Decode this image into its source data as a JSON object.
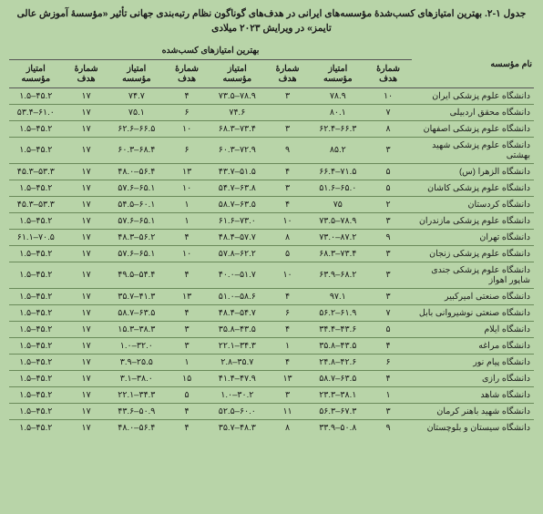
{
  "title": "جدول ۱-۲. بهترین امتیازهای کسب‌شدهٔ مؤسسه‌های ایرانی در هدف‌های گوناگون نظام رتبه‌بندی جهانی تأثیر «مؤسسهٔ آموزش عالی تایمز» در ویرایش ۲۰۲۳ میلادی",
  "headers": {
    "name": "نام مؤسسه",
    "best_scores": "بهترین امتیازهای کسب‌شده",
    "goal_no": "شمارهٔ هدف",
    "inst_score": "امتیاز مؤسسه"
  },
  "rows": [
    {
      "name": "دانشگاه علوم پزشکی ایران",
      "c": [
        "۱۰",
        "۷۸.۹",
        "۳",
        "۷۳.۵–۷۸.۹",
        "۴",
        "۷۴.۷",
        "۱۷",
        "۱.۵–۴۵.۲"
      ]
    },
    {
      "name": "دانشگاه محقق اردبیلی",
      "c": [
        "۷",
        "۸۰.۱",
        "",
        "۷۴.۶",
        "۶",
        "۷۵.۱",
        "۱۷",
        "۵۳.۴–۶۱.۰"
      ]
    },
    {
      "name": "دانشگاه علوم پزشکی اصفهان",
      "c": [
        "۸",
        "۶۲.۴–۶۶.۳",
        "۳",
        "۶۸.۳–۷۳.۴",
        "۱۰",
        "۶۲.۶–۶۶.۵",
        "۱۷",
        "۱.۵–۴۵.۲"
      ]
    },
    {
      "name": "دانشگاه علوم پزشکی شهید بهشتی",
      "c": [
        "۳",
        "۸۵.۲",
        "۹",
        "۶۰.۳–۷۲.۹",
        "۶",
        "۶۰.۳–۶۸.۴",
        "۱۷",
        "۱.۵–۴۵.۲"
      ]
    },
    {
      "name": "دانشگاه الزهرا (س)",
      "c": [
        "۵",
        "۶۶.۴–۷۱.۵",
        "۴",
        "۴۳.۷–۵۱.۵",
        "۱۳",
        "۴۸.۰–۵۶.۴",
        "۱۷",
        "۴۵.۳–۵۳.۳"
      ]
    },
    {
      "name": "دانشگاه علوم پزشکی کاشان",
      "c": [
        "۵",
        "۵۱.۶–۶۵.۰",
        "۳",
        "۵۴.۷–۶۳.۸",
        "۱۰",
        "۵۷.۶–۶۵.۱",
        "۱۷",
        "۱.۵–۴۵.۲"
      ]
    },
    {
      "name": "دانشگاه کردستان",
      "c": [
        "۲",
        "۷۵",
        "۴",
        "۵۸.۷–۶۳.۵",
        "۱",
        "۵۴.۵–۶۰.۱",
        "۱۷",
        "۴۵.۳–۵۳.۳"
      ]
    },
    {
      "name": "دانشگاه علوم پزشکی مازندران",
      "c": [
        "۳",
        "۷۳.۵–۷۸.۹",
        "۱۰",
        "۶۱.۶–۷۳.۰",
        "۱",
        "۵۷.۶–۶۵.۱",
        "۱۷",
        "۱.۵–۴۵.۲"
      ]
    },
    {
      "name": "دانشگاه تهران",
      "c": [
        "۹",
        "۷۳.۰–۸۷.۲",
        "۸",
        "۴۸.۴–۵۷.۷",
        "۴",
        "۴۸.۳–۵۶.۲",
        "۱۷",
        "۶۱.۱–۷۰.۵"
      ]
    },
    {
      "name": "دانشگاه علوم پزشکی زنجان",
      "c": [
        "۳",
        "۶۸.۳–۷۳.۴",
        "۵",
        "۵۷.۸–۶۲.۲",
        "۱۰",
        "۵۷.۶–۶۵.۱",
        "۱۷",
        "۱.۵–۴۵.۲"
      ]
    },
    {
      "name": "دانشگاه علوم پزشکی جندی شاپور اهواز",
      "c": [
        "۳",
        "۶۳.۹–۶۸.۲",
        "۱۰",
        "۴۰.۰–۵۱.۷",
        "۴",
        "۴۹.۵–۵۴.۴",
        "۱۷",
        "۱.۵–۴۵.۲"
      ]
    },
    {
      "name": "دانشگاه صنعتی امیرکبیر",
      "c": [
        "۳",
        "۹۷.۱",
        "۴",
        "۵۱.۰–۵۸.۶",
        "۱۳",
        "۳۵.۷–۴۱.۳",
        "۱۷",
        "۱.۵–۴۵.۲"
      ]
    },
    {
      "name": "دانشگاه صنعتی نوشیروانی بابل",
      "c": [
        "۷",
        "۵۶.۲–۶۱.۹",
        "۶",
        "۴۸.۴–۵۴.۷",
        "۴",
        "۵۸.۷–۶۳.۵",
        "۱۷",
        "۱.۵–۴۵.۲"
      ]
    },
    {
      "name": "دانشگاه ایلام",
      "c": [
        "۵",
        "۳۴.۴–۴۳.۶",
        "۴",
        "۳۵.۸–۴۳.۵",
        "۳",
        "۱۵.۳–۳۸.۳",
        "۱۷",
        "۱.۵–۴۵.۲"
      ]
    },
    {
      "name": "دانشگاه مراغه",
      "c": [
        "۴",
        "۳۵.۸–۴۳.۵",
        "۱",
        "۲۲.۱–۳۴.۳",
        "۳",
        "۱.۰–۳۲.۰",
        "۱۷",
        "۱.۵–۴۵.۲"
      ]
    },
    {
      "name": "دانشگاه پیام نور",
      "c": [
        "۶",
        "۲۴.۸–۴۲.۶",
        "۴",
        "۲.۸–۳۵.۷",
        "۱",
        "۳.۹–۲۵.۵",
        "۱۷",
        "۱.۵–۴۵.۲"
      ]
    },
    {
      "name": "دانشگاه رازی",
      "c": [
        "۴",
        "۵۸.۷–۶۳.۵",
        "۱۳",
        "۴۱.۴–۴۷.۹",
        "۱۵",
        "۳.۱–۳۸.۰",
        "۱۷",
        "۱.۵–۴۵.۲"
      ]
    },
    {
      "name": "دانشگاه شاهد",
      "c": [
        "۱",
        "۲۳.۳–۳۸.۱",
        "۳",
        "۱.۰–۳۰.۲",
        "۵",
        "۲۲.۱–۳۴.۳",
        "۱۷",
        "۱.۵–۴۵.۲"
      ]
    },
    {
      "name": "دانشگاه شهید باهنر کرمان",
      "c": [
        "۳",
        "۵۶.۳–۶۷.۳",
        "۱۱",
        "۵۲.۵–۶۰.۰",
        "۴",
        "۴۳.۶–۵۰.۹",
        "۱۷",
        "۱.۵–۴۵.۲"
      ]
    },
    {
      "name": "دانشگاه سیستان و بلوچستان",
      "c": [
        "۹",
        "۳۳.۹–۵۰.۸",
        "۸",
        "۳۵.۷–۴۸.۳",
        "۴",
        "۴۸.۰–۵۶.۴",
        "۱۷",
        "۱.۵–۴۵.۲"
      ]
    }
  ]
}
